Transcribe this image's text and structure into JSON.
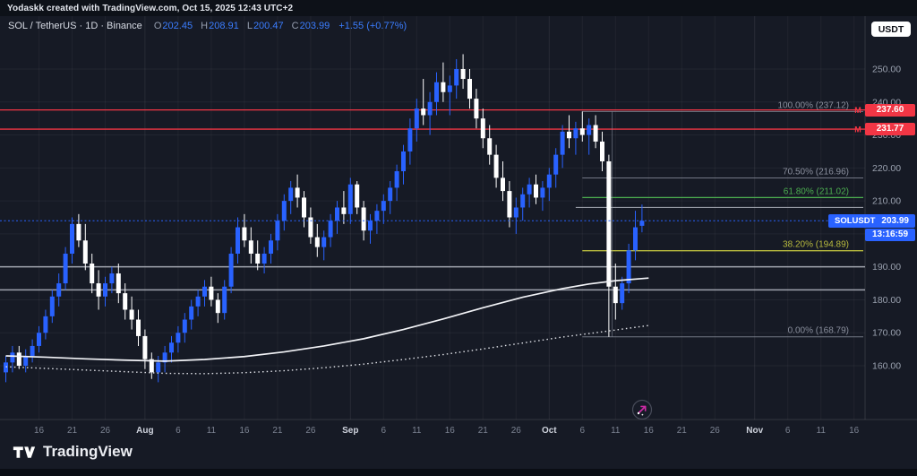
{
  "top_bar": {
    "attribution": "Yodaskk created with TradingView.com, Oct 15, 2025 12:43 UTC+2"
  },
  "header": {
    "title": "SOL / TetherUS · 1D · Binance",
    "ohlc": {
      "o_label": "O",
      "open": "202.45",
      "h_label": "H",
      "high": "208.91",
      "l_label": "L",
      "low": "200.47",
      "c_label": "C",
      "close": "203.99",
      "change": "+1.55 (+0.77%)"
    },
    "currency_button": "USDT"
  },
  "colors": {
    "up": "#2962ff",
    "down": "#ffffff",
    "red_line": "#f23645",
    "green": "#4caf50",
    "olive": "#b9bb3e",
    "gray_level": "#8a8f9d",
    "badge_blue": "#2962ff",
    "support_line": "#b8bcc6"
  },
  "price_scale": {
    "ticks": [
      "250.00",
      "240.00",
      "230.00",
      "220.00",
      "210.00",
      "200.00",
      "190.00",
      "180.00",
      "170.00",
      "160.00"
    ],
    "tick_values": [
      250,
      240,
      230,
      220,
      210,
      200,
      190,
      180,
      170,
      160
    ]
  },
  "time_scale": {
    "labels": [
      {
        "text": "16",
        "index": 5,
        "month": false
      },
      {
        "text": "21",
        "index": 10,
        "month": false
      },
      {
        "text": "26",
        "index": 15,
        "month": false
      },
      {
        "text": "Aug",
        "index": 21,
        "month": true
      },
      {
        "text": "6",
        "index": 26,
        "month": false
      },
      {
        "text": "11",
        "index": 31,
        "month": false
      },
      {
        "text": "16",
        "index": 36,
        "month": false
      },
      {
        "text": "21",
        "index": 41,
        "month": false
      },
      {
        "text": "26",
        "index": 46,
        "month": false
      },
      {
        "text": "Sep",
        "index": 52,
        "month": true
      },
      {
        "text": "6",
        "index": 57,
        "month": false
      },
      {
        "text": "11",
        "index": 62,
        "month": false
      },
      {
        "text": "16",
        "index": 67,
        "month": false
      },
      {
        "text": "21",
        "index": 72,
        "month": false
      },
      {
        "text": "26",
        "index": 77,
        "month": false
      },
      {
        "text": "Oct",
        "index": 82,
        "month": true
      },
      {
        "text": "6",
        "index": 87,
        "month": false
      },
      {
        "text": "11",
        "index": 92,
        "month": false
      },
      {
        "text": "16",
        "index": 97,
        "month": false
      },
      {
        "text": "21",
        "index": 102,
        "month": false
      },
      {
        "text": "26",
        "index": 107,
        "month": false
      },
      {
        "text": "Nov",
        "index": 113,
        "month": true
      },
      {
        "text": "6",
        "index": 118,
        "month": false
      },
      {
        "text": "11",
        "index": 123,
        "month": false
      },
      {
        "text": "16",
        "index": 128,
        "month": false
      }
    ]
  },
  "price_line": {
    "symbol": "SOLUSDT",
    "price": "203.99",
    "value": 203.99,
    "countdown": "13:16:59"
  },
  "levels": {
    "red_lines": [
      {
        "label": "237.60",
        "value": 237.6,
        "marker": "M"
      },
      {
        "label": "231.77",
        "value": 231.77,
        "marker": "M"
      }
    ],
    "horizontal_lines": [
      {
        "value": 190.0
      },
      {
        "value": 183.0
      }
    ],
    "ray_lines": [
      {
        "value": 208.0,
        "from_index": 86
      }
    ],
    "fib": {
      "from_index": 87,
      "trend_index": 91.5,
      "levels": [
        {
          "pct": "100.00%",
          "price": "237.12",
          "value": 237.12,
          "color": "gray"
        },
        {
          "pct": "70.50%",
          "price": "216.96",
          "value": 216.96,
          "color": "gray"
        },
        {
          "pct": "61.80%",
          "price": "211.02",
          "value": 211.02,
          "color": "green"
        },
        {
          "pct": "38.20%",
          "price": "194.89",
          "value": 194.89,
          "color": "olive"
        },
        {
          "pct": "0.00%",
          "price": "168.79",
          "value": 168.79,
          "color": "gray"
        }
      ]
    }
  },
  "chart_data": {
    "type": "candlestick",
    "symbol": "SOLUSDT",
    "interval": "1D",
    "exchange": "Binance",
    "start_date": "2025-07-11",
    "end_date": "2025-10-15",
    "ohlc_fields": [
      "open",
      "high",
      "low",
      "close"
    ],
    "ylim": [
      144,
      266
    ],
    "y_ticks": [
      160,
      170,
      180,
      190,
      200,
      210,
      220,
      230,
      240,
      250
    ],
    "candles": [
      [
        158,
        163,
        155,
        161
      ],
      [
        161,
        166,
        158,
        164
      ],
      [
        164,
        166,
        159,
        160
      ],
      [
        160,
        165,
        158,
        163
      ],
      [
        163,
        168,
        161,
        166
      ],
      [
        166,
        172,
        164,
        170
      ],
      [
        170,
        177,
        168,
        175
      ],
      [
        175,
        183,
        173,
        181
      ],
      [
        181,
        188,
        178,
        185
      ],
      [
        185,
        196,
        183,
        194
      ],
      [
        194,
        205,
        191,
        203
      ],
      [
        203,
        206,
        196,
        198
      ],
      [
        198,
        203,
        189,
        191
      ],
      [
        191,
        194,
        182,
        185
      ],
      [
        185,
        189,
        177,
        181
      ],
      [
        181,
        187,
        178,
        185
      ],
      [
        185,
        190,
        182,
        188
      ],
      [
        188,
        191,
        179,
        182
      ],
      [
        182,
        185,
        174,
        177
      ],
      [
        177,
        181,
        171,
        174
      ],
      [
        174,
        177,
        166,
        169
      ],
      [
        169,
        171,
        159,
        162
      ],
      [
        162,
        164,
        156,
        158
      ],
      [
        158,
        163,
        155,
        161
      ],
      [
        161,
        166,
        158,
        164
      ],
      [
        164,
        169,
        161,
        167
      ],
      [
        167,
        172,
        164,
        170
      ],
      [
        170,
        176,
        167,
        174
      ],
      [
        174,
        180,
        171,
        178
      ],
      [
        178,
        183,
        175,
        181
      ],
      [
        181,
        186,
        178,
        184
      ],
      [
        184,
        187,
        178,
        180
      ],
      [
        180,
        182,
        173,
        176
      ],
      [
        176,
        186,
        174,
        184
      ],
      [
        184,
        196,
        182,
        194
      ],
      [
        194,
        205,
        191,
        202
      ],
      [
        202,
        206,
        196,
        198
      ],
      [
        198,
        202,
        191,
        194
      ],
      [
        194,
        198,
        189,
        191
      ],
      [
        191,
        196,
        188,
        194
      ],
      [
        194,
        200,
        191,
        198
      ],
      [
        198,
        206,
        195,
        204
      ],
      [
        204,
        212,
        201,
        210
      ],
      [
        210,
        216,
        206,
        214
      ],
      [
        214,
        218,
        208,
        211
      ],
      [
        211,
        213,
        202,
        205
      ],
      [
        205,
        208,
        197,
        199
      ],
      [
        199,
        203,
        193,
        196
      ],
      [
        196,
        201,
        192,
        199
      ],
      [
        199,
        206,
        196,
        204
      ],
      [
        204,
        210,
        200,
        208
      ],
      [
        208,
        213,
        203,
        206
      ],
      [
        206,
        217,
        203,
        215
      ],
      [
        215,
        216,
        206,
        208
      ],
      [
        208,
        210,
        198,
        201
      ],
      [
        201,
        206,
        197,
        204
      ],
      [
        204,
        209,
        200,
        207
      ],
      [
        207,
        212,
        203,
        210
      ],
      [
        210,
        216,
        206,
        214
      ],
      [
        214,
        221,
        210,
        219
      ],
      [
        219,
        227,
        215,
        225
      ],
      [
        225,
        235,
        221,
        232
      ],
      [
        232,
        241,
        228,
        238
      ],
      [
        238,
        247,
        233,
        236
      ],
      [
        236,
        243,
        230,
        240
      ],
      [
        240,
        249,
        236,
        246
      ],
      [
        246,
        252,
        240,
        243
      ],
      [
        243,
        248,
        236,
        245
      ],
      [
        245,
        253,
        241,
        250
      ],
      [
        250,
        254.5,
        244,
        247
      ],
      [
        247,
        250,
        238,
        241
      ],
      [
        241,
        244,
        232,
        235
      ],
      [
        235,
        238,
        226,
        229
      ],
      [
        229,
        233,
        221,
        224
      ],
      [
        224,
        227,
        214,
        217
      ],
      [
        217,
        222,
        210,
        213
      ],
      [
        213,
        216,
        202,
        205
      ],
      [
        205,
        211,
        200,
        208
      ],
      [
        208,
        214,
        204,
        212
      ],
      [
        212,
        217,
        208,
        215
      ],
      [
        215,
        218,
        209,
        211
      ],
      [
        211,
        216,
        207,
        214
      ],
      [
        214,
        220,
        210,
        218
      ],
      [
        218,
        226,
        214,
        224
      ],
      [
        224,
        233,
        220,
        231
      ],
      [
        231,
        236,
        226,
        229
      ],
      [
        229,
        234,
        224,
        232
      ],
      [
        232,
        237.12,
        228,
        230
      ],
      [
        230,
        235,
        224,
        233
      ],
      [
        233,
        236,
        226,
        228
      ],
      [
        228,
        231,
        219,
        222
      ],
      [
        222,
        224,
        168.79,
        184
      ],
      [
        184,
        191,
        174,
        179
      ],
      [
        179,
        187,
        177,
        185
      ],
      [
        185,
        197,
        182,
        195
      ],
      [
        195,
        207,
        192,
        202
      ],
      [
        202.45,
        208.91,
        200.47,
        203.99
      ]
    ],
    "ma_solid": [
      [
        0,
        163
      ],
      [
        6,
        162.6
      ],
      [
        12,
        162.1
      ],
      [
        18,
        161.7
      ],
      [
        24,
        161.4
      ],
      [
        30,
        161.9
      ],
      [
        36,
        162.8
      ],
      [
        42,
        164.2
      ],
      [
        48,
        166
      ],
      [
        54,
        168.2
      ],
      [
        60,
        171
      ],
      [
        66,
        174.2
      ],
      [
        72,
        177.6
      ],
      [
        78,
        180.8
      ],
      [
        84,
        183.4
      ],
      [
        88,
        184.8
      ],
      [
        92,
        185.8
      ],
      [
        97,
        186.6
      ]
    ],
    "ma_dotted": [
      [
        0,
        159.7
      ],
      [
        6,
        159.2
      ],
      [
        12,
        158.7
      ],
      [
        18,
        158.2
      ],
      [
        24,
        157.7
      ],
      [
        30,
        157.6
      ],
      [
        36,
        157.9
      ],
      [
        42,
        158.5
      ],
      [
        48,
        159.4
      ],
      [
        54,
        160.5
      ],
      [
        60,
        161.9
      ],
      [
        66,
        163.4
      ],
      [
        72,
        165.1
      ],
      [
        78,
        166.9
      ],
      [
        84,
        168.7
      ],
      [
        90,
        170.3
      ],
      [
        97,
        172.2
      ]
    ]
  },
  "footer": {
    "logo_text": "TradingView"
  }
}
